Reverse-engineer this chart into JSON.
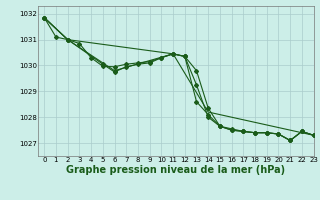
{
  "title": "Graphe pression niveau de la mer (hPa)",
  "background_color": "#cceee8",
  "grid_color": "#aacccc",
  "line_color": "#1a5c1a",
  "xlim": [
    -0.5,
    23
  ],
  "ylim": [
    1026.5,
    1032.3
  ],
  "yticks": [
    1027,
    1028,
    1029,
    1030,
    1031,
    1032
  ],
  "xticks": [
    0,
    1,
    2,
    3,
    4,
    5,
    6,
    7,
    8,
    9,
    10,
    11,
    12,
    13,
    14,
    15,
    16,
    17,
    18,
    19,
    20,
    21,
    22,
    23
  ],
  "series": [
    {
      "x": [
        0,
        1,
        2,
        3,
        4,
        5,
        6,
        7,
        8,
        9,
        10,
        11,
        12,
        13,
        14,
        15,
        16,
        17,
        18,
        19,
        20,
        21,
        22,
        23
      ],
      "y": [
        1031.85,
        1031.1,
        1031.0,
        1030.85,
        1030.3,
        1029.97,
        1029.95,
        1030.05,
        1030.1,
        1030.15,
        1030.3,
        1030.45,
        1030.35,
        1029.8,
        1028.35,
        1027.65,
        1027.55,
        1027.45,
        1027.4,
        1027.4,
        1027.35,
        1027.1,
        1027.45,
        1027.3
      ],
      "has_markers": true
    },
    {
      "x": [
        0,
        2,
        11,
        14,
        23
      ],
      "y": [
        1031.85,
        1031.0,
        1030.45,
        1028.2,
        1027.3
      ],
      "has_markers": false
    },
    {
      "x": [
        0,
        2,
        5,
        6,
        7,
        8,
        9,
        10,
        11,
        12,
        13,
        14,
        15,
        16,
        17,
        18,
        19,
        20,
        21,
        22,
        23
      ],
      "y": [
        1031.85,
        1031.0,
        1030.05,
        1029.75,
        1029.95,
        1030.05,
        1030.1,
        1030.3,
        1030.45,
        1030.35,
        1029.25,
        1028.0,
        1027.65,
        1027.5,
        1027.45,
        1027.4,
        1027.4,
        1027.35,
        1027.1,
        1027.45,
        1027.3
      ],
      "has_markers": true
    },
    {
      "x": [
        0,
        2,
        6,
        11,
        12,
        13,
        14,
        15,
        16,
        17,
        18,
        19,
        20,
        21,
        22,
        23
      ],
      "y": [
        1031.85,
        1031.0,
        1029.8,
        1030.45,
        1030.35,
        1028.6,
        1028.1,
        1027.65,
        1027.5,
        1027.45,
        1027.4,
        1027.4,
        1027.35,
        1027.1,
        1027.45,
        1027.3
      ],
      "has_markers": true
    }
  ],
  "marker": "D",
  "marker_size": 2.0,
  "linewidth": 0.8,
  "title_fontsize": 7.0,
  "tick_fontsize": 5.0
}
